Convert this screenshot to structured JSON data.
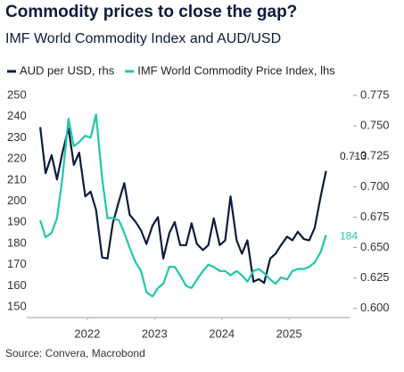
{
  "chart_data": {
    "type": "line",
    "title": "Commodity prices to close the gap?",
    "subtitle": "IMF World Commodity Index and AUD/USD",
    "source": "Source: Convera, Macrobond",
    "x": [
      2021.8,
      2021.88,
      2021.97,
      2022.05,
      2022.13,
      2022.22,
      2022.3,
      2022.38,
      2022.47,
      2022.55,
      2022.63,
      2022.72,
      2022.8,
      2022.88,
      2022.97,
      2023.05,
      2023.13,
      2023.22,
      2023.3,
      2023.38,
      2023.47,
      2023.55,
      2023.63,
      2023.72,
      2023.8,
      2023.88,
      2023.97,
      2024.05,
      2024.13,
      2024.22,
      2024.3,
      2024.38,
      2024.47,
      2024.55,
      2024.63,
      2024.72,
      2024.8,
      2024.88,
      2024.97,
      2025.05,
      2025.13,
      2025.22,
      2025.3,
      2025.38,
      2025.47,
      2025.55,
      2025.63,
      2025.72,
      2025.8,
      2025.88,
      2025.97,
      2026.05
    ],
    "xlim": [
      2021.6,
      2026.4
    ],
    "xticks": [
      {
        "value": 2022.5,
        "label": "2022"
      },
      {
        "value": 2023.5,
        "label": "2023"
      },
      {
        "value": 2024.5,
        "label": "2024"
      },
      {
        "value": 2025.5,
        "label": "2025"
      }
    ],
    "ylim": [
      145,
      250
    ],
    "yticks": [
      150,
      160,
      170,
      180,
      190,
      200,
      210,
      220,
      230,
      240,
      250
    ],
    "y2lim": [
      0.5925,
      0.775
    ],
    "y2ticks": [
      {
        "value": 0.6,
        "label": "0.600"
      },
      {
        "value": 0.625,
        "label": "0.625"
      },
      {
        "value": 0.65,
        "label": "0.650"
      },
      {
        "value": 0.675,
        "label": "0.675"
      },
      {
        "value": 0.7,
        "label": "0.700"
      },
      {
        "value": 0.725,
        "label": "0.725"
      },
      {
        "value": 0.75,
        "label": "0.750"
      },
      {
        "value": 0.775,
        "label": "0.775"
      }
    ],
    "series": [
      {
        "name": "AUD per USD, rhs",
        "color": "#0d1b3e",
        "axis": "y2",
        "values": [
          0.749,
          0.711,
          0.726,
          0.706,
          0.728,
          0.748,
          0.718,
          0.728,
          0.692,
          0.696,
          0.681,
          0.642,
          0.641,
          0.67,
          0.688,
          0.703,
          0.677,
          0.671,
          0.664,
          0.653,
          0.668,
          0.675,
          0.641,
          0.662,
          0.671,
          0.652,
          0.652,
          0.67,
          0.653,
          0.648,
          0.652,
          0.674,
          0.652,
          0.656,
          0.692,
          0.656,
          0.645,
          0.656,
          0.622,
          0.624,
          0.621,
          0.641,
          0.645,
          0.652,
          0.659,
          0.656,
          0.663,
          0.657,
          0.656,
          0.666,
          0.692,
          0.713
        ]
      },
      {
        "name": "IMF World Commodity Price Index, lhs",
        "color": "#1fc7a8",
        "axis": "y",
        "values": [
          191,
          183,
          185,
          192,
          211,
          239,
          226,
          228,
          231,
          230,
          241,
          211,
          192,
          192,
          191,
          185,
          178,
          171,
          167,
          157,
          155,
          159,
          161,
          169,
          169,
          165,
          160,
          159,
          163,
          167,
          170,
          169,
          167,
          167,
          165,
          167,
          165,
          162,
          167,
          168,
          166,
          163,
          161,
          164,
          163,
          167,
          168,
          168,
          169,
          171,
          176,
          184
        ]
      }
    ]
  }
}
